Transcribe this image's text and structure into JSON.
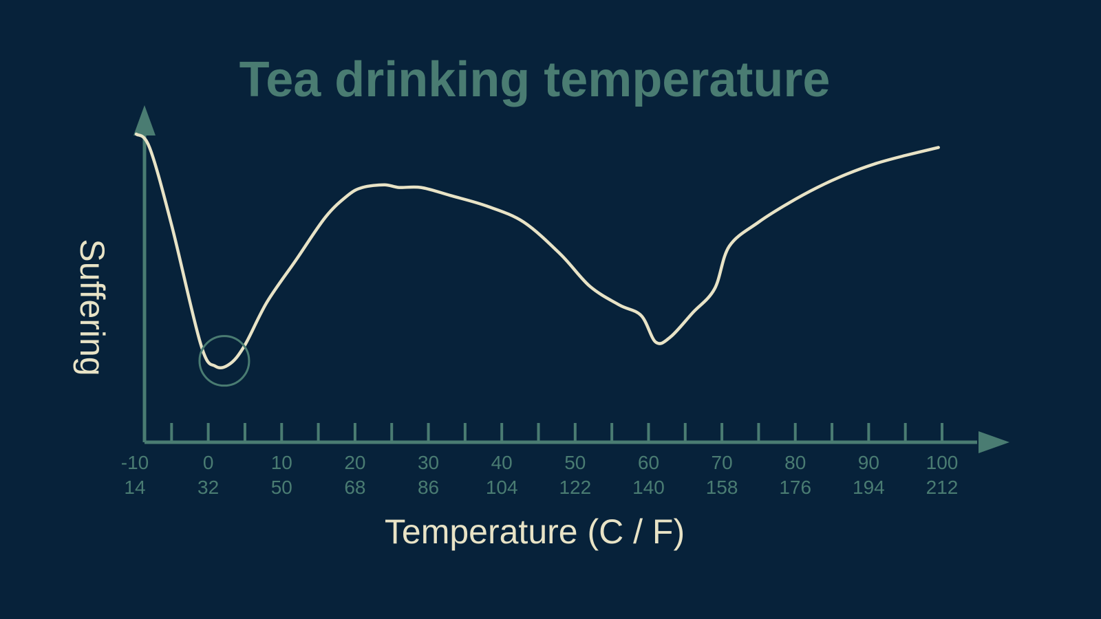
{
  "colors": {
    "background": "#07223A",
    "accent": "#4A7C72",
    "curve": "#E8E3C6",
    "axis_label": "#E8E3C6"
  },
  "chart_data": {
    "type": "line",
    "title": "Tea drinking temperature",
    "xlabel": "Temperature (C / F)",
    "ylabel": "Suffering",
    "xlim": [
      -10,
      100
    ],
    "ylim": [
      0,
      100
    ],
    "x_ticks": {
      "celsius": [
        "-10",
        "0",
        "10",
        "20",
        "30",
        "40",
        "50",
        "60",
        "70",
        "80",
        "90",
        "100"
      ],
      "fahrenheit": [
        "14",
        "32",
        "50",
        "68",
        "86",
        "104",
        "122",
        "140",
        "158",
        "176",
        "194",
        "212"
      ]
    },
    "minor_ticks_every": 5,
    "y_ticks": [],
    "grid": false,
    "series": [
      {
        "values_xy": [
          [
            -9.8,
            100
          ],
          [
            -8,
            95
          ],
          [
            -5,
            66
          ],
          [
            -1,
            21
          ],
          [
            1,
            13
          ],
          [
            3,
            14
          ],
          [
            5,
            21
          ],
          [
            8,
            37
          ],
          [
            12,
            53
          ],
          [
            16,
            69
          ],
          [
            19,
            77
          ],
          [
            21,
            80
          ],
          [
            24,
            81
          ],
          [
            26,
            80
          ],
          [
            29,
            80
          ],
          [
            33,
            77
          ],
          [
            38,
            73
          ],
          [
            43,
            67
          ],
          [
            48,
            55
          ],
          [
            52,
            43
          ],
          [
            56,
            36
          ],
          [
            59,
            32
          ],
          [
            61,
            22
          ],
          [
            63,
            24
          ],
          [
            66,
            33
          ],
          [
            69,
            42
          ],
          [
            71,
            58
          ],
          [
            75,
            67
          ],
          [
            79,
            74
          ],
          [
            83,
            80
          ],
          [
            87,
            85
          ],
          [
            91,
            89
          ],
          [
            95,
            92
          ],
          [
            99.5,
            95
          ]
        ]
      }
    ],
    "annotations": [
      {
        "shape": "circle",
        "at": [
          2,
          14
        ]
      }
    ]
  }
}
